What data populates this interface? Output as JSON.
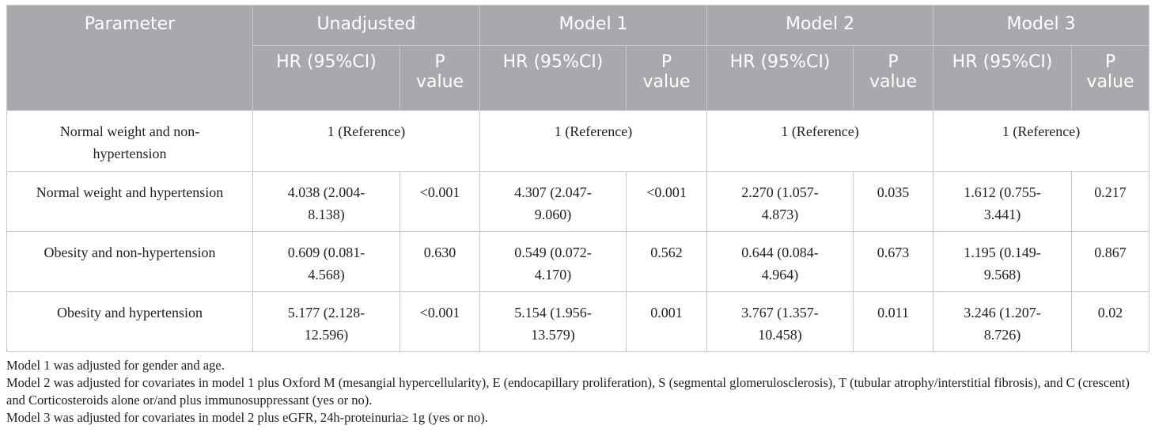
{
  "table": {
    "headers": {
      "parameter": "Parameter",
      "groups": [
        "Unadjusted",
        "Model 1",
        "Model 2",
        "Model 3"
      ],
      "hr_label": "HR (95%CI)",
      "p_label_line1": "P",
      "p_label_line2": "value"
    },
    "reference_row": {
      "label_line1": "Normal weight and non-",
      "label_line2": "hypertension",
      "value": "1 (Reference)"
    },
    "rows": [
      {
        "label": "Normal weight and hypertension",
        "cells": [
          {
            "hr1": "4.038 (2.004-",
            "hr2": "8.138)",
            "p": "<0.001"
          },
          {
            "hr1": "4.307 (2.047-",
            "hr2": "9.060)",
            "p": "<0.001"
          },
          {
            "hr1": "2.270 (1.057-",
            "hr2": "4.873)",
            "p": "0.035"
          },
          {
            "hr1": "1.612 (0.755-",
            "hr2": "3.441)",
            "p": "0.217"
          }
        ]
      },
      {
        "label": "Obesity and non-hypertension",
        "cells": [
          {
            "hr1": "0.609 (0.081-",
            "hr2": "4.568)",
            "p": "0.630"
          },
          {
            "hr1": "0.549 (0.072-",
            "hr2": "4.170)",
            "p": "0.562"
          },
          {
            "hr1": "0.644 (0.084-",
            "hr2": "4.964)",
            "p": "0.673"
          },
          {
            "hr1": "1.195 (0.149-",
            "hr2": "9.568)",
            "p": "0.867"
          }
        ]
      },
      {
        "label": "Obesity and hypertension",
        "cells": [
          {
            "hr1": "5.177 (2.128-",
            "hr2": "12.596)",
            "p": "<0.001"
          },
          {
            "hr1": "5.154 (1.956-",
            "hr2": "13.579)",
            "p": "0.001"
          },
          {
            "hr1": "3.767 (1.357-",
            "hr2": "10.458)",
            "p": "0.011"
          },
          {
            "hr1": "3.246 (1.207-",
            "hr2": "8.726)",
            "p": "0.02"
          }
        ]
      }
    ]
  },
  "notes": [
    "Model 1 was adjusted for gender and age.",
    "Model 2 was adjusted for covariates in model 1 plus Oxford M (mesangial hypercellularity), E (endocapillary proliferation), S (segmental glomerulosclerosis), T (tubular atrophy/interstitial fibrosis), and C (crescent) and Corticosteroids alone or/and plus immunosuppressant (yes or no).",
    "Model 3 was adjusted for covariates in model 2 plus eGFR, 24h-proteinuria≥ 1g (yes or no)."
  ]
}
